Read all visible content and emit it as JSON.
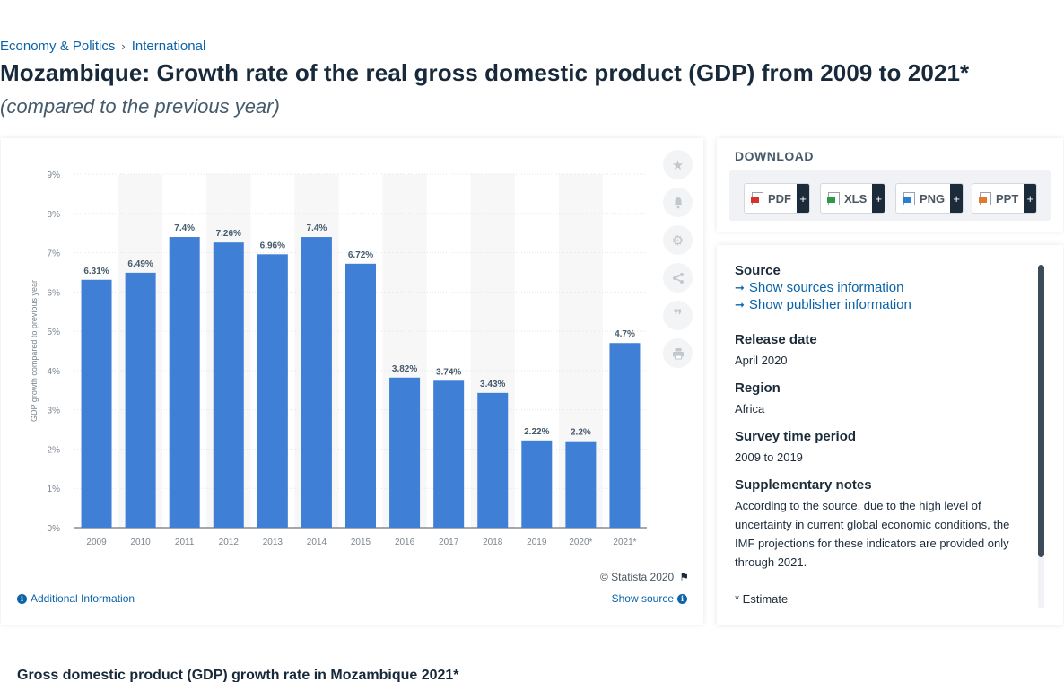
{
  "breadcrumb": {
    "items": [
      "Economy & Politics",
      "International"
    ],
    "separator": "›"
  },
  "title": "Mozambique: Growth rate of the real gross domestic product (GDP) from 2009 to 2021*",
  "subtitle": "(compared to the previous year)",
  "chart_data": {
    "type": "bar",
    "categories": [
      "2009",
      "2010",
      "2011",
      "2012",
      "2013",
      "2014",
      "2015",
      "2016",
      "2017",
      "2018",
      "2019",
      "2020*",
      "2021*"
    ],
    "values": [
      6.31,
      6.49,
      7.4,
      7.26,
      6.96,
      7.4,
      6.72,
      3.82,
      3.74,
      3.43,
      2.22,
      2.2,
      4.7
    ],
    "data_labels": [
      "6.31%",
      "6.49%",
      "7.4%",
      "7.26%",
      "6.96%",
      "7.4%",
      "6.72%",
      "3.82%",
      "3.74%",
      "3.43%",
      "2.22%",
      "2.2%",
      "4.7%"
    ],
    "ylabel": "GDP growth compared to previous year",
    "ylim": [
      0,
      9
    ],
    "yticks": [
      0,
      1,
      2,
      3,
      4,
      5,
      6,
      7,
      8,
      9
    ],
    "ytick_labels": [
      "0%",
      "1%",
      "2%",
      "3%",
      "4%",
      "5%",
      "6%",
      "7%",
      "8%",
      "9%"
    ],
    "grid": true,
    "bar_color": "#3f7fd6"
  },
  "chart_footer": {
    "credit": "© Statista 2020",
    "additional_info": "Additional Information",
    "show_source": "Show source"
  },
  "toolbar_icons": [
    "star-icon",
    "bell-icon",
    "gear-icon",
    "share-icon",
    "quote-icon",
    "print-icon"
  ],
  "download": {
    "title": "DOWNLOAD",
    "buttons": [
      {
        "label": "PDF",
        "color": "#d9312b"
      },
      {
        "label": "XLS",
        "color": "#2e9a47"
      },
      {
        "label": "PNG",
        "color": "#2a7fd1"
      },
      {
        "label": "PPT",
        "color": "#e0792b"
      }
    ],
    "plus": "+"
  },
  "info": {
    "source_heading": "Source",
    "show_sources": "Show sources information",
    "show_publisher": "Show publisher information",
    "release_heading": "Release date",
    "release_value": "April 2020",
    "region_heading": "Region",
    "region_value": "Africa",
    "survey_heading": "Survey time period",
    "survey_value": "2009 to 2019",
    "notes_heading": "Supplementary notes",
    "notes_value": "According to the source, due to the high level of uncertainty in current global economic conditions, the IMF projections for these indicators are provided only through 2021.",
    "estimate_note": "* Estimate"
  },
  "bottom_heading": "Gross domestic product (GDP) growth rate in Mozambique 2021*",
  "colors": {
    "accent": "#0b63a8",
    "bar": "#3f7fd6",
    "dark": "#1b2b3a"
  }
}
